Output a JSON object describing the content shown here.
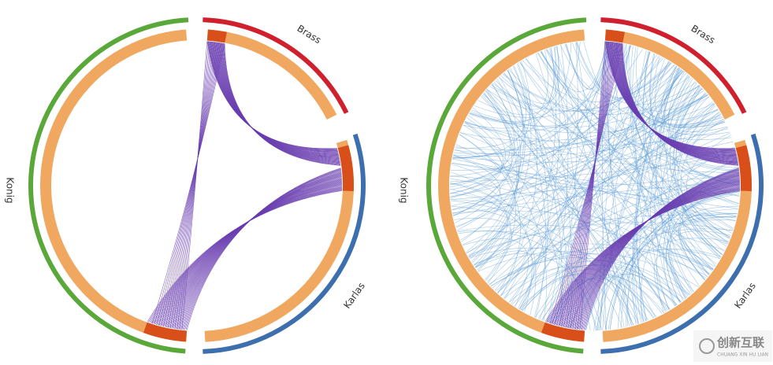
{
  "panels": [
    {
      "labels": [
        "Brass",
        "Karlas",
        "Konig"
      ]
    },
    {
      "labels": [
        "Brass",
        "Karlas",
        "Konig"
      ]
    }
  ],
  "watermark": {
    "title": "创新互联",
    "subtitle": "CHUANG XIN HU LIAN"
  }
}
